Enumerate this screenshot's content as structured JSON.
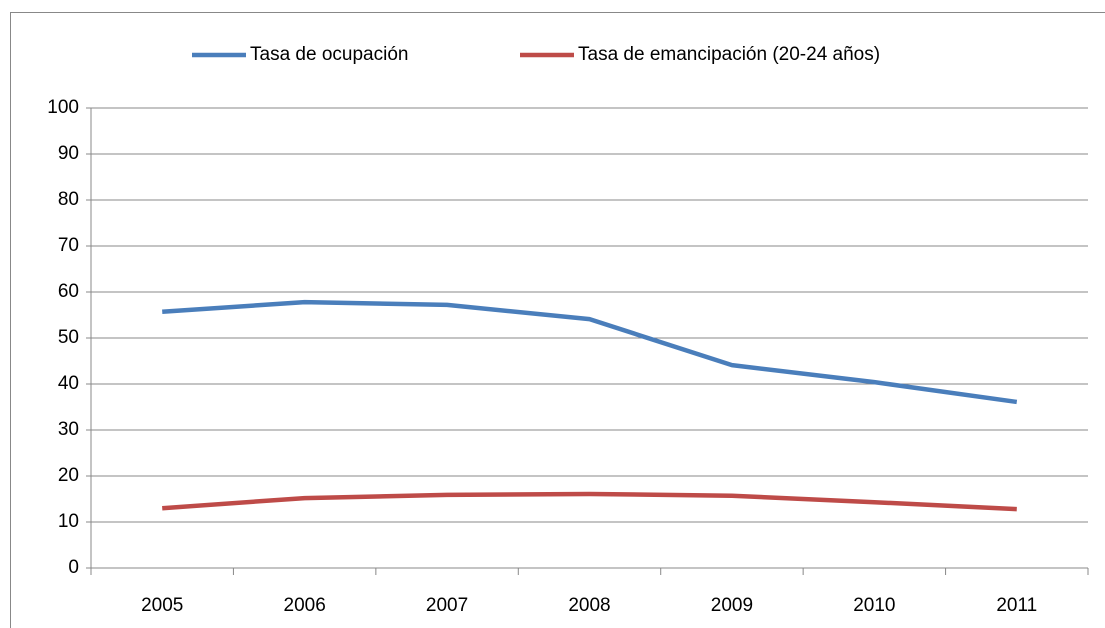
{
  "chart_data": {
    "type": "line",
    "categories": [
      "2005",
      "2006",
      "2007",
      "2008",
      "2009",
      "2010",
      "2011"
    ],
    "series": [
      {
        "name": "Tasa de ocupación",
        "color": "#4a7ebb",
        "values": [
          55.7,
          57.8,
          57.2,
          54.1,
          44.1,
          40.4,
          36.1
        ]
      },
      {
        "name": "Tasa de emancipación (20-24 años)",
        "color": "#be4b48",
        "values": [
          13.0,
          15.2,
          15.9,
          16.1,
          15.7,
          14.3,
          12.8
        ]
      }
    ],
    "ylim": [
      0,
      100
    ],
    "yticks": [
      0,
      10,
      20,
      30,
      40,
      50,
      60,
      70,
      80,
      90,
      100
    ],
    "grid": true,
    "legend": "top"
  }
}
